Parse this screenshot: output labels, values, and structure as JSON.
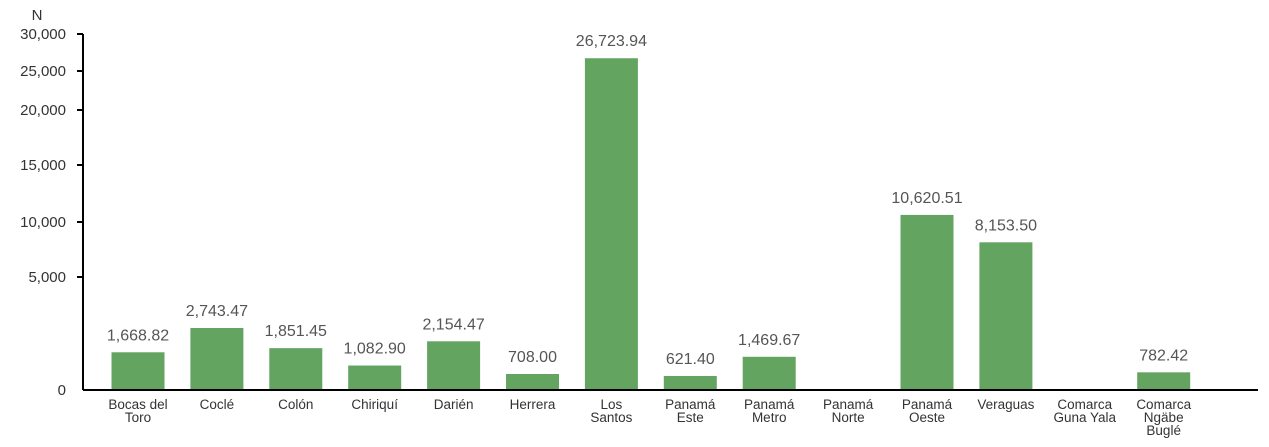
{
  "chart_data": {
    "type": "bar",
    "y_unit_label": "N",
    "y_ticks": [
      0,
      5000,
      10000,
      15000,
      20000,
      25000,
      30000
    ],
    "y_tick_labels": [
      "0",
      "5,000",
      "10,000",
      "15,000",
      "20,000",
      "25,000",
      "30,000"
    ],
    "categories": [
      "Bocas del Toro",
      "Coclé",
      "Colón",
      "Chiriquí",
      "Darién",
      "Herrera",
      "Los Santos",
      "Panamá Este",
      "Panamá Metro",
      "Panamá Norte",
      "Panamá Oeste",
      "Veraguas",
      "Comarca Guna Yala",
      "Comarca Ngäbe Buglé"
    ],
    "category_lines": [
      [
        "Bocas del",
        "Toro"
      ],
      [
        "Coclé"
      ],
      [
        "Colón"
      ],
      [
        "Chiriquí"
      ],
      [
        "Darién"
      ],
      [
        "Herrera"
      ],
      [
        "Los",
        "Santos"
      ],
      [
        "Panamá",
        "Este"
      ],
      [
        "Panamá",
        "Metro"
      ],
      [
        "Panamá",
        "Norte"
      ],
      [
        "Panamá",
        "Oeste"
      ],
      [
        "Veraguas"
      ],
      [
        "Comarca",
        "Guna Yala"
      ],
      [
        "Comarca",
        "Ngäbe",
        "Buglé"
      ]
    ],
    "values": [
      1668.82,
      2743.47,
      1851.45,
      1082.9,
      2154.47,
      708.0,
      26723.94,
      621.4,
      1469.67,
      null,
      10620.51,
      8153.5,
      null,
      782.42
    ],
    "value_labels": [
      "1,668.82",
      "2,743.47",
      "1,851.45",
      "1,082.90",
      "2,154.47",
      "708.00",
      "26,723.94",
      "621.40",
      "1,469.67",
      "",
      "10,620.51",
      "8,153.50",
      "",
      "782.42"
    ],
    "bar_color": "#63a460",
    "axis_color": "#000000",
    "grid": false,
    "legend": "none"
  }
}
